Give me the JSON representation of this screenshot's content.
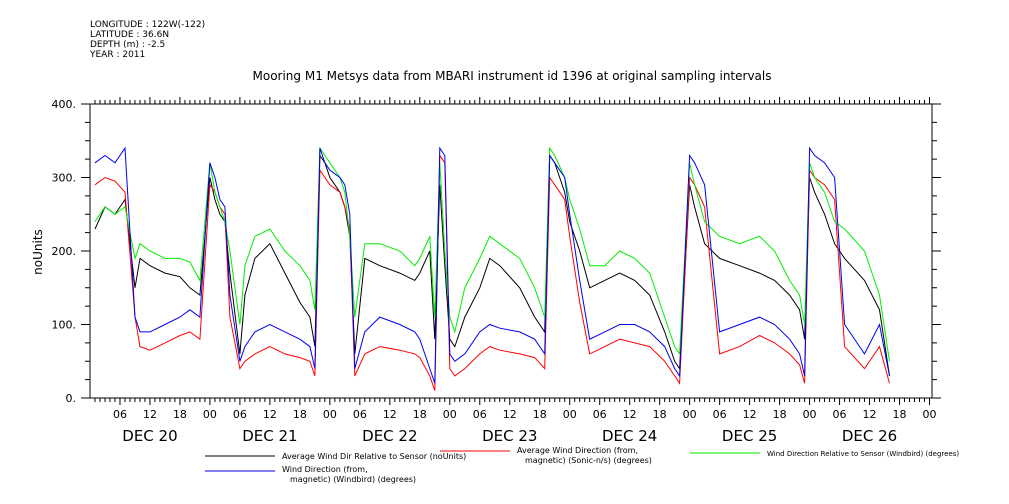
{
  "header": {
    "longitude": "LONGITUDE : 122W(-122)",
    "latitude": "LATITUDE : 36.6N",
    "depth": "DEPTH (m) : -2.5",
    "year": "YEAR : 2011"
  },
  "chart_data": {
    "type": "line",
    "title": "Mooring M1 Metsys data from MBARI instrument id 1396 at original sampling intervals",
    "ylabel": "noUnits",
    "ylim": [
      0,
      400
    ],
    "ytick_labels": [
      "0.",
      "100.",
      "200.",
      "300.",
      "400."
    ],
    "xlim": [
      "DEC 20 00:00",
      "DEC 27 00:30"
    ],
    "hour_tick_labels": [
      "06",
      "12",
      "18",
      "00"
    ],
    "day_labels": [
      "DEC 20",
      "DEC 21",
      "DEC 22",
      "DEC 23",
      "DEC 24",
      "DEC 25",
      "DEC 26"
    ],
    "grid": false,
    "legend_position": "bottom",
    "x_unit": "hours since DEC 20 00:00",
    "series": [
      {
        "name": "Average Wind Dir Relative to Sensor (noUnits)",
        "color": "#000000",
        "points": [
          [
            1,
            230
          ],
          [
            3,
            260
          ],
          [
            5,
            250
          ],
          [
            7,
            270
          ],
          [
            9,
            150
          ],
          [
            10,
            190
          ],
          [
            12,
            180
          ],
          [
            15,
            170
          ],
          [
            18,
            165
          ],
          [
            20,
            150
          ],
          [
            22,
            140
          ],
          [
            24,
            300
          ],
          [
            25,
            270
          ],
          [
            26,
            250
          ],
          [
            27,
            240
          ],
          [
            28,
            170
          ],
          [
            30,
            60
          ],
          [
            31,
            140
          ],
          [
            33,
            190
          ],
          [
            36,
            210
          ],
          [
            39,
            170
          ],
          [
            42,
            130
          ],
          [
            44,
            110
          ],
          [
            45,
            70
          ],
          [
            46,
            330
          ],
          [
            47,
            320
          ],
          [
            48,
            300
          ],
          [
            50,
            280
          ],
          [
            51,
            260
          ],
          [
            52,
            220
          ],
          [
            53,
            60
          ],
          [
            55,
            190
          ],
          [
            58,
            180
          ],
          [
            62,
            170
          ],
          [
            65,
            160
          ],
          [
            66,
            170
          ],
          [
            68,
            200
          ],
          [
            69,
            80
          ],
          [
            70,
            290
          ],
          [
            71,
            180
          ],
          [
            72,
            80
          ],
          [
            73,
            70
          ],
          [
            75,
            110
          ],
          [
            78,
            150
          ],
          [
            80,
            190
          ],
          [
            82,
            180
          ],
          [
            86,
            150
          ],
          [
            89,
            110
          ],
          [
            91,
            90
          ],
          [
            92,
            330
          ],
          [
            93,
            320
          ],
          [
            95,
            280
          ],
          [
            96,
            240
          ],
          [
            98,
            200
          ],
          [
            100,
            150
          ],
          [
            103,
            160
          ],
          [
            106,
            170
          ],
          [
            109,
            160
          ],
          [
            112,
            140
          ],
          [
            115,
            90
          ],
          [
            117,
            50
          ],
          [
            118,
            40
          ],
          [
            120,
            290
          ],
          [
            121,
            260
          ],
          [
            123,
            210
          ],
          [
            126,
            190
          ],
          [
            130,
            180
          ],
          [
            134,
            170
          ],
          [
            137,
            160
          ],
          [
            140,
            140
          ],
          [
            142,
            120
          ],
          [
            143,
            80
          ],
          [
            144,
            300
          ],
          [
            145,
            280
          ],
          [
            147,
            250
          ],
          [
            149,
            210
          ],
          [
            151,
            190
          ],
          [
            155,
            160
          ],
          [
            158,
            120
          ],
          [
            160,
            30
          ]
        ]
      },
      {
        "name": "Average Wind Direction (from, magnetic) (Sonic-n/s) (degrees)",
        "color": "#ff0000",
        "points": [
          [
            1,
            290
          ],
          [
            3,
            300
          ],
          [
            5,
            295
          ],
          [
            7,
            280
          ],
          [
            9,
            110
          ],
          [
            10,
            70
          ],
          [
            12,
            65
          ],
          [
            15,
            75
          ],
          [
            18,
            85
          ],
          [
            20,
            90
          ],
          [
            22,
            80
          ],
          [
            24,
            290
          ],
          [
            25,
            280
          ],
          [
            26,
            260
          ],
          [
            27,
            250
          ],
          [
            28,
            110
          ],
          [
            30,
            40
          ],
          [
            31,
            50
          ],
          [
            33,
            60
          ],
          [
            36,
            70
          ],
          [
            39,
            60
          ],
          [
            42,
            55
          ],
          [
            44,
            50
          ],
          [
            45,
            30
          ],
          [
            46,
            310
          ],
          [
            47,
            300
          ],
          [
            48,
            290
          ],
          [
            50,
            280
          ],
          [
            51,
            260
          ],
          [
            52,
            230
          ],
          [
            53,
            30
          ],
          [
            55,
            60
          ],
          [
            58,
            70
          ],
          [
            62,
            65
          ],
          [
            65,
            60
          ],
          [
            66,
            55
          ],
          [
            68,
            30
          ],
          [
            69,
            10
          ],
          [
            70,
            330
          ],
          [
            71,
            320
          ],
          [
            72,
            40
          ],
          [
            73,
            30
          ],
          [
            75,
            40
          ],
          [
            78,
            60
          ],
          [
            80,
            70
          ],
          [
            82,
            65
          ],
          [
            86,
            60
          ],
          [
            89,
            55
          ],
          [
            91,
            40
          ],
          [
            92,
            300
          ],
          [
            93,
            290
          ],
          [
            95,
            270
          ],
          [
            96,
            220
          ],
          [
            98,
            130
          ],
          [
            100,
            60
          ],
          [
            103,
            70
          ],
          [
            106,
            80
          ],
          [
            109,
            75
          ],
          [
            112,
            70
          ],
          [
            115,
            50
          ],
          [
            117,
            30
          ],
          [
            118,
            20
          ],
          [
            120,
            300
          ],
          [
            121,
            290
          ],
          [
            123,
            260
          ],
          [
            126,
            60
          ],
          [
            130,
            70
          ],
          [
            134,
            85
          ],
          [
            137,
            75
          ],
          [
            140,
            60
          ],
          [
            142,
            45
          ],
          [
            143,
            20
          ],
          [
            144,
            310
          ],
          [
            145,
            300
          ],
          [
            147,
            290
          ],
          [
            149,
            270
          ],
          [
            151,
            70
          ],
          [
            155,
            40
          ],
          [
            158,
            70
          ],
          [
            160,
            20
          ]
        ]
      },
      {
        "name": "Wind Direction Relative to Sensor (Windbird) (degrees)",
        "color": "#00ee00",
        "points": [
          [
            1,
            240
          ],
          [
            3,
            260
          ],
          [
            5,
            250
          ],
          [
            7,
            260
          ],
          [
            9,
            190
          ],
          [
            10,
            210
          ],
          [
            12,
            200
          ],
          [
            15,
            190
          ],
          [
            18,
            190
          ],
          [
            20,
            185
          ],
          [
            22,
            160
          ],
          [
            24,
            320
          ],
          [
            25,
            280
          ],
          [
            26,
            260
          ],
          [
            27,
            240
          ],
          [
            28,
            200
          ],
          [
            30,
            100
          ],
          [
            31,
            180
          ],
          [
            33,
            220
          ],
          [
            36,
            230
          ],
          [
            39,
            200
          ],
          [
            42,
            180
          ],
          [
            44,
            160
          ],
          [
            45,
            120
          ],
          [
            46,
            340
          ],
          [
            47,
            330
          ],
          [
            48,
            320
          ],
          [
            50,
            300
          ],
          [
            51,
            280
          ],
          [
            52,
            220
          ],
          [
            53,
            110
          ],
          [
            55,
            210
          ],
          [
            58,
            210
          ],
          [
            62,
            200
          ],
          [
            65,
            180
          ],
          [
            66,
            190
          ],
          [
            68,
            220
          ],
          [
            69,
            110
          ],
          [
            70,
            320
          ],
          [
            71,
            200
          ],
          [
            72,
            110
          ],
          [
            73,
            90
          ],
          [
            75,
            150
          ],
          [
            78,
            190
          ],
          [
            80,
            220
          ],
          [
            82,
            210
          ],
          [
            86,
            190
          ],
          [
            89,
            150
          ],
          [
            91,
            110
          ],
          [
            92,
            340
          ],
          [
            93,
            330
          ],
          [
            95,
            300
          ],
          [
            96,
            270
          ],
          [
            98,
            230
          ],
          [
            100,
            180
          ],
          [
            103,
            180
          ],
          [
            106,
            200
          ],
          [
            109,
            190
          ],
          [
            112,
            170
          ],
          [
            115,
            110
          ],
          [
            117,
            70
          ],
          [
            118,
            60
          ],
          [
            120,
            320
          ],
          [
            121,
            290
          ],
          [
            123,
            240
          ],
          [
            126,
            220
          ],
          [
            130,
            210
          ],
          [
            134,
            220
          ],
          [
            137,
            200
          ],
          [
            140,
            160
          ],
          [
            142,
            140
          ],
          [
            143,
            100
          ],
          [
            144,
            320
          ],
          [
            145,
            300
          ],
          [
            147,
            280
          ],
          [
            149,
            240
          ],
          [
            151,
            230
          ],
          [
            155,
            200
          ],
          [
            158,
            140
          ],
          [
            160,
            50
          ]
        ]
      },
      {
        "name": "Wind Direction (from, magnetic) (Windbird) (degrees)",
        "color": "#0000ee",
        "points": [
          [
            1,
            320
          ],
          [
            3,
            330
          ],
          [
            5,
            320
          ],
          [
            7,
            340
          ],
          [
            9,
            110
          ],
          [
            10,
            90
          ],
          [
            12,
            90
          ],
          [
            15,
            100
          ],
          [
            18,
            110
          ],
          [
            20,
            120
          ],
          [
            22,
            110
          ],
          [
            24,
            320
          ],
          [
            25,
            300
          ],
          [
            26,
            270
          ],
          [
            27,
            260
          ],
          [
            28,
            140
          ],
          [
            30,
            50
          ],
          [
            31,
            70
          ],
          [
            33,
            90
          ],
          [
            36,
            100
          ],
          [
            39,
            90
          ],
          [
            42,
            80
          ],
          [
            44,
            70
          ],
          [
            45,
            40
          ],
          [
            46,
            340
          ],
          [
            47,
            320
          ],
          [
            48,
            310
          ],
          [
            50,
            300
          ],
          [
            51,
            290
          ],
          [
            52,
            250
          ],
          [
            53,
            40
          ],
          [
            55,
            90
          ],
          [
            58,
            110
          ],
          [
            62,
            100
          ],
          [
            65,
            90
          ],
          [
            66,
            80
          ],
          [
            68,
            40
          ],
          [
            69,
            20
          ],
          [
            70,
            340
          ],
          [
            71,
            330
          ],
          [
            72,
            60
          ],
          [
            73,
            50
          ],
          [
            75,
            60
          ],
          [
            78,
            90
          ],
          [
            80,
            100
          ],
          [
            82,
            95
          ],
          [
            86,
            90
          ],
          [
            89,
            80
          ],
          [
            91,
            60
          ],
          [
            92,
            330
          ],
          [
            93,
            320
          ],
          [
            95,
            300
          ],
          [
            96,
            250
          ],
          [
            98,
            160
          ],
          [
            100,
            80
          ],
          [
            103,
            90
          ],
          [
            106,
            100
          ],
          [
            109,
            100
          ],
          [
            112,
            90
          ],
          [
            115,
            70
          ],
          [
            117,
            40
          ],
          [
            118,
            30
          ],
          [
            120,
            330
          ],
          [
            121,
            320
          ],
          [
            123,
            290
          ],
          [
            126,
            90
          ],
          [
            130,
            100
          ],
          [
            134,
            110
          ],
          [
            137,
            100
          ],
          [
            140,
            80
          ],
          [
            142,
            60
          ],
          [
            143,
            30
          ],
          [
            144,
            340
          ],
          [
            145,
            330
          ],
          [
            147,
            320
          ],
          [
            149,
            300
          ],
          [
            151,
            100
          ],
          [
            155,
            60
          ],
          [
            158,
            100
          ],
          [
            160,
            30
          ]
        ]
      }
    ]
  }
}
